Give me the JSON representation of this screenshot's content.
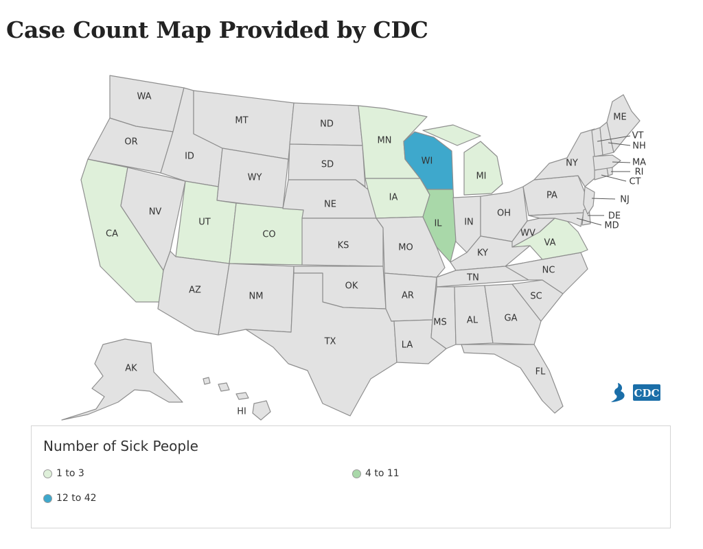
{
  "page": {
    "title": "Case Count Map Provided by CDC"
  },
  "legend": {
    "title": "Number of Sick People",
    "items": [
      {
        "label": "1 to 3",
        "color": "#dff0da"
      },
      {
        "label": "4 to 11",
        "color": "#a9d8a9"
      },
      {
        "label": "12 to 42",
        "color": "#3ea8cc"
      }
    ]
  },
  "colors": {
    "no_cases": "#e2e2e2",
    "border": "#8e8e8e",
    "cdc_blue": "#1a6ea8"
  },
  "logo": {
    "text": "CDC"
  },
  "map": {
    "states": {
      "WA": {
        "label": "WA",
        "category": "none"
      },
      "OR": {
        "label": "OR",
        "category": "none"
      },
      "CA": {
        "label": "CA",
        "category": "1 to 3"
      },
      "NV": {
        "label": "NV",
        "category": "none"
      },
      "ID": {
        "label": "ID",
        "category": "none"
      },
      "MT": {
        "label": "MT",
        "category": "none"
      },
      "WY": {
        "label": "WY",
        "category": "none"
      },
      "UT": {
        "label": "UT",
        "category": "1 to 3"
      },
      "CO": {
        "label": "CO",
        "category": "1 to 3"
      },
      "AZ": {
        "label": "AZ",
        "category": "none"
      },
      "NM": {
        "label": "NM",
        "category": "none"
      },
      "ND": {
        "label": "ND",
        "category": "none"
      },
      "SD": {
        "label": "SD",
        "category": "none"
      },
      "NE": {
        "label": "NE",
        "category": "none"
      },
      "KS": {
        "label": "KS",
        "category": "none"
      },
      "OK": {
        "label": "OK",
        "category": "none"
      },
      "TX": {
        "label": "TX",
        "category": "none"
      },
      "MN": {
        "label": "MN",
        "category": "1 to 3"
      },
      "IA": {
        "label": "IA",
        "category": "1 to 3"
      },
      "MO": {
        "label": "MO",
        "category": "none"
      },
      "AR": {
        "label": "AR",
        "category": "none"
      },
      "LA": {
        "label": "LA",
        "category": "none"
      },
      "WI": {
        "label": "WI",
        "category": "12 to 42"
      },
      "IL": {
        "label": "IL",
        "category": "4 to 11"
      },
      "MI": {
        "label": "MI",
        "category": "1 to 3"
      },
      "IN": {
        "label": "IN",
        "category": "none"
      },
      "OH": {
        "label": "OH",
        "category": "none"
      },
      "KY": {
        "label": "KY",
        "category": "none"
      },
      "TN": {
        "label": "TN",
        "category": "none"
      },
      "MS": {
        "label": "MS",
        "category": "none"
      },
      "AL": {
        "label": "AL",
        "category": "none"
      },
      "GA": {
        "label": "GA",
        "category": "none"
      },
      "FL": {
        "label": "FL",
        "category": "none"
      },
      "SC": {
        "label": "SC",
        "category": "none"
      },
      "NC": {
        "label": "NC",
        "category": "none"
      },
      "VA": {
        "label": "VA",
        "category": "1 to 3"
      },
      "WV": {
        "label": "WV",
        "category": "none"
      },
      "PA": {
        "label": "PA",
        "category": "none"
      },
      "NY": {
        "label": "NY",
        "category": "none"
      },
      "NJ": {
        "label": "NJ",
        "category": "none"
      },
      "DE": {
        "label": "DE",
        "category": "none"
      },
      "MD": {
        "label": "MD",
        "category": "none"
      },
      "CT": {
        "label": "CT",
        "category": "none"
      },
      "RI": {
        "label": "RI",
        "category": "none"
      },
      "MA": {
        "label": "MA",
        "category": "none"
      },
      "VT": {
        "label": "VT",
        "category": "none"
      },
      "NH": {
        "label": "NH",
        "category": "none"
      },
      "ME": {
        "label": "ME",
        "category": "none"
      },
      "AK": {
        "label": "AK",
        "category": "none"
      },
      "HI": {
        "label": "HI",
        "category": "none"
      }
    }
  }
}
